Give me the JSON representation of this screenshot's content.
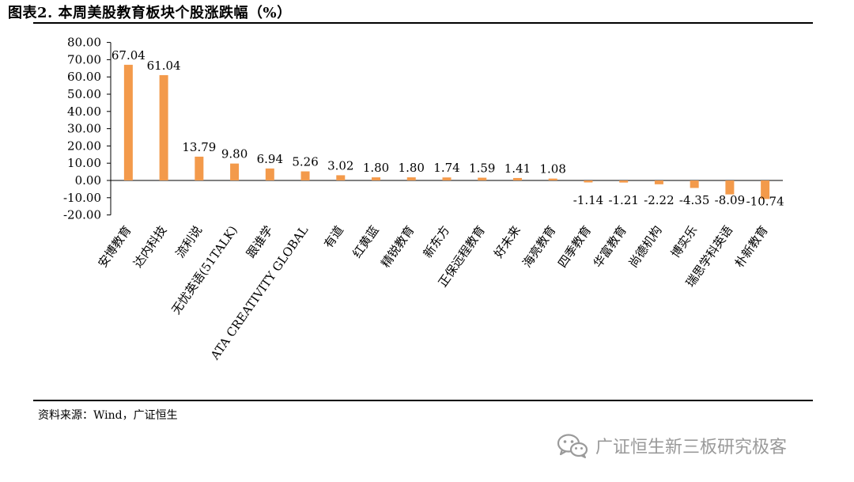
{
  "header": {
    "title": "图表2. 本周美股教育板块个股涨跌幅（%）"
  },
  "footer": {
    "source": "资料来源：Wind，广证恒生"
  },
  "watermark": {
    "text": "广证恒生新三板研究极客",
    "icon": "wechat-icon"
  },
  "colors": {
    "bar": "#F39A4B",
    "axis": "#000000",
    "text": "#000000"
  },
  "chart_data": {
    "type": "bar",
    "title": "本周美股教育板块个股涨跌幅（%）",
    "xlabel": "",
    "ylabel": "",
    "ylim": [
      -20,
      80
    ],
    "yticks": [
      "80.00",
      "70.00",
      "60.00",
      "50.00",
      "40.00",
      "30.00",
      "20.00",
      "10.00",
      "0.00",
      "-10.00",
      "-20.00"
    ],
    "grid": false,
    "legend": "none",
    "categories": [
      "安博教育",
      "达内科技",
      "流利说",
      "无忧英语(51TALK)",
      "跟谁学",
      "ATA CREATIVITY GLOBAL",
      "有道",
      "红黄蓝",
      "精锐教育",
      "新东方",
      "正保远程教育",
      "好未来",
      "海亮教育",
      "四季教育",
      "华富教育",
      "尚德机构",
      "博实乐",
      "瑞思学科英语",
      "朴新教育"
    ],
    "values": [
      67.04,
      61.04,
      13.79,
      9.8,
      6.94,
      5.26,
      3.02,
      1.8,
      1.8,
      1.74,
      1.59,
      1.41,
      1.08,
      -1.14,
      -1.21,
      -2.22,
      -4.35,
      -8.09,
      -10.74
    ],
    "value_labels": [
      "67.04",
      "61.04",
      "13.79",
      "9.80",
      "6.94",
      "5.26",
      "3.02",
      "1.80",
      "1.80",
      "1.74",
      "1.59",
      "1.41",
      "1.08",
      "-1.14",
      "-1.21",
      "-2.22",
      "-4.35",
      "-8.09",
      "-10.74"
    ]
  }
}
